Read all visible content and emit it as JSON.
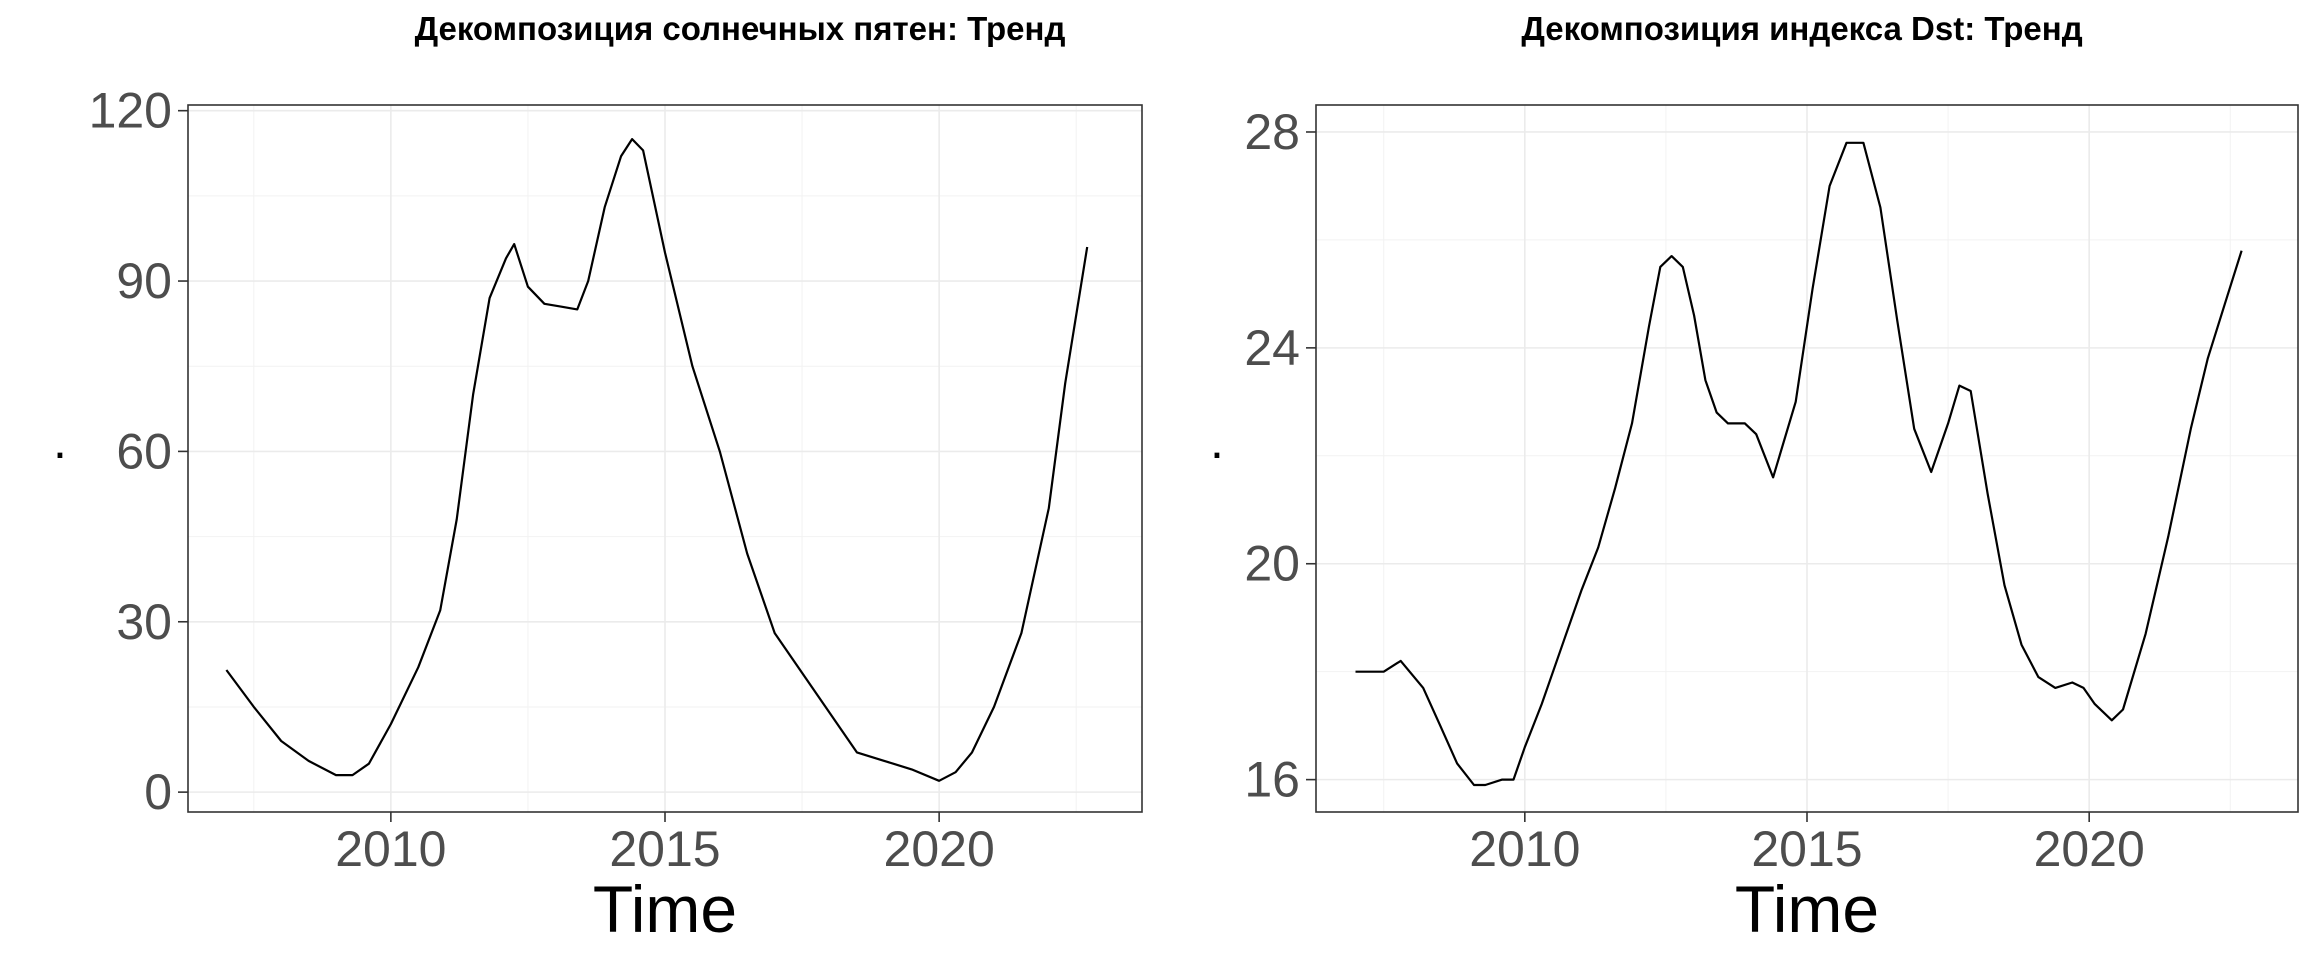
{
  "chart_data": [
    {
      "type": "line",
      "title": "Декомпозиция солнечных пятен: Тренд",
      "xlabel": "Time",
      "ylabel": ".",
      "xlim": [
        2006.3,
        2023.7
      ],
      "ylim": [
        -3.5,
        121
      ],
      "xticks": [
        2010,
        2015,
        2020
      ],
      "xtick_labels": [
        "2010",
        "2015",
        "2020"
      ],
      "yticks": [
        0,
        30,
        60,
        90,
        120
      ],
      "ytick_labels": [
        "0",
        "30",
        "60",
        "90",
        "120"
      ],
      "grid": true,
      "series": [
        {
          "x": [
            2007.0,
            2007.5,
            2008.0,
            2008.5,
            2009.0,
            2009.3,
            2009.6,
            2010.0,
            2010.5,
            2010.9,
            2011.2,
            2011.5,
            2011.8,
            2012.1,
            2012.25,
            2012.5,
            2012.8,
            2013.1,
            2013.4,
            2013.6,
            2013.9,
            2014.2,
            2014.4,
            2014.6,
            2015.0,
            2015.5,
            2016.0,
            2016.5,
            2017.0,
            2017.5,
            2018.0,
            2018.5,
            2019.0,
            2019.5,
            2020.0,
            2020.3,
            2020.6,
            2021.0,
            2021.5,
            2022.0,
            2022.3,
            2022.7
          ],
          "y": [
            21.5,
            15,
            9,
            5.5,
            3,
            3,
            5,
            12,
            22,
            32,
            48,
            70,
            87,
            94,
            96.5,
            89,
            86,
            85.5,
            85,
            90,
            103,
            112,
            115,
            113,
            95,
            75,
            60,
            42,
            28,
            21,
            14,
            7,
            5.5,
            4,
            2,
            3.5,
            7,
            15,
            28,
            50,
            72,
            96
          ]
        }
      ]
    },
    {
      "type": "line",
      "title": "Декомпозиция индекса Dst: Тренд",
      "xlabel": "Time",
      "ylabel": ".",
      "xlim": [
        2006.3,
        2023.7
      ],
      "ylim": [
        15.4,
        28.5
      ],
      "xticks": [
        2010,
        2015,
        2020
      ],
      "xtick_labels": [
        "2010",
        "2015",
        "2020"
      ],
      "yticks": [
        16,
        20,
        24,
        28
      ],
      "ytick_labels": [
        "16",
        "20",
        "24",
        "28"
      ],
      "grid": true,
      "series": [
        {
          "x": [
            2007.0,
            2007.5,
            2007.8,
            2008.2,
            2008.5,
            2008.8,
            2009.1,
            2009.3,
            2009.6,
            2009.8,
            2010.0,
            2010.3,
            2010.7,
            2011.0,
            2011.3,
            2011.6,
            2011.9,
            2012.2,
            2012.4,
            2012.6,
            2012.8,
            2013.0,
            2013.2,
            2013.4,
            2013.6,
            2013.9,
            2014.1,
            2014.4,
            2014.8,
            2015.1,
            2015.4,
            2015.7,
            2016.0,
            2016.3,
            2016.6,
            2016.9,
            2017.2,
            2017.5,
            2017.7,
            2017.9,
            2018.2,
            2018.5,
            2018.8,
            2019.1,
            2019.4,
            2019.7,
            2019.9,
            2020.1,
            2020.4,
            2020.6,
            2021.0,
            2021.4,
            2021.8,
            2022.1,
            2022.4,
            2022.7
          ],
          "y": [
            18.0,
            18.0,
            18.2,
            17.7,
            17.0,
            16.3,
            15.9,
            15.9,
            16.0,
            16.0,
            16.6,
            17.4,
            18.6,
            19.5,
            20.3,
            21.4,
            22.6,
            24.4,
            25.5,
            25.7,
            25.5,
            24.6,
            23.4,
            22.8,
            22.6,
            22.6,
            22.4,
            21.6,
            23.0,
            25.1,
            27.0,
            27.8,
            27.8,
            26.6,
            24.5,
            22.5,
            21.7,
            22.6,
            23.3,
            23.2,
            21.3,
            19.6,
            18.5,
            17.9,
            17.7,
            17.8,
            17.7,
            17.4,
            17.1,
            17.3,
            18.7,
            20.5,
            22.5,
            23.8,
            24.8,
            25.8
          ]
        }
      ]
    }
  ]
}
